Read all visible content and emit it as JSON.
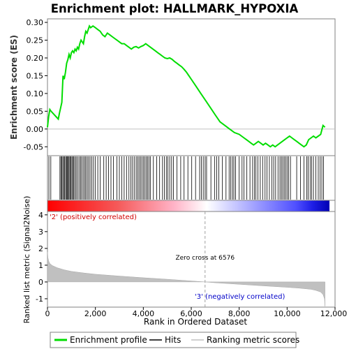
{
  "chart_data": {
    "type": "line",
    "title": "Enrichment plot: HALLMARK_HYPOXIA",
    "es_panel": {
      "ylabel": "Enrichment score (ES)",
      "ylim": [
        -0.075,
        0.31
      ],
      "yticks": [
        "0.30",
        "0.25",
        "0.20",
        "0.15",
        "0.10",
        "0.05",
        "0.00",
        "-0.05"
      ],
      "ytick_values": [
        0.3,
        0.25,
        0.2,
        0.15,
        0.1,
        0.05,
        0.0,
        -0.05
      ],
      "series": [
        {
          "name": "Enrichment profile",
          "color": "#00dd00",
          "x": [
            0,
            50,
            100,
            150,
            450,
            500,
            550,
            600,
            650,
            700,
            750,
            800,
            850,
            900,
            950,
            1000,
            1050,
            1100,
            1150,
            1200,
            1250,
            1300,
            1350,
            1400,
            1450,
            1500,
            1550,
            1600,
            1650,
            1700,
            1750,
            1800,
            1900,
            2000,
            2100,
            2200,
            2300,
            2400,
            2500,
            2600,
            2700,
            2800,
            2900,
            3000,
            3100,
            3200,
            3300,
            3400,
            3500,
            3600,
            3700,
            3800,
            3900,
            4000,
            4100,
            4200,
            4300,
            4400,
            4500,
            4600,
            4700,
            4800,
            4900,
            5000,
            5100,
            5200,
            5300,
            5400,
            5500,
            5600,
            5700,
            5800,
            5900,
            6000,
            6200,
            6400,
            6600,
            6800,
            7000,
            7200,
            7400,
            7600,
            7800,
            8000,
            8100,
            8200,
            8300,
            8400,
            8500,
            8600,
            8700,
            8800,
            8900,
            9000,
            9100,
            9200,
            9300,
            9400,
            9500,
            9600,
            9700,
            9800,
            9900,
            10000,
            10100,
            10200,
            10300,
            10400,
            10500,
            10600,
            10700,
            10800,
            10900,
            11000,
            11100,
            11200,
            11300,
            11400,
            11500,
            11580
          ],
          "y": [
            0.005,
            0.035,
            0.055,
            0.05,
            0.028,
            0.045,
            0.06,
            0.075,
            0.15,
            0.14,
            0.16,
            0.185,
            0.195,
            0.21,
            0.2,
            0.215,
            0.22,
            0.215,
            0.225,
            0.22,
            0.23,
            0.225,
            0.24,
            0.25,
            0.245,
            0.24,
            0.26,
            0.275,
            0.27,
            0.28,
            0.29,
            0.285,
            0.29,
            0.285,
            0.28,
            0.275,
            0.265,
            0.26,
            0.27,
            0.265,
            0.26,
            0.255,
            0.25,
            0.245,
            0.24,
            0.24,
            0.235,
            0.23,
            0.225,
            0.23,
            0.232,
            0.228,
            0.232,
            0.235,
            0.24,
            0.235,
            0.23,
            0.225,
            0.22,
            0.215,
            0.21,
            0.205,
            0.2,
            0.198,
            0.2,
            0.196,
            0.19,
            0.185,
            0.18,
            0.175,
            0.168,
            0.16,
            0.15,
            0.14,
            0.12,
            0.1,
            0.08,
            0.06,
            0.04,
            0.02,
            0.01,
            0.0,
            -0.01,
            -0.015,
            -0.02,
            -0.025,
            -0.03,
            -0.035,
            -0.04,
            -0.045,
            -0.04,
            -0.035,
            -0.04,
            -0.045,
            -0.04,
            -0.045,
            -0.05,
            -0.045,
            -0.05,
            -0.045,
            -0.04,
            -0.035,
            -0.03,
            -0.025,
            -0.02,
            -0.025,
            -0.03,
            -0.035,
            -0.04,
            -0.045,
            -0.05,
            -0.045,
            -0.03,
            -0.025,
            -0.02,
            -0.025,
            -0.02,
            -0.015,
            0.01,
            0.005
          ]
        }
      ]
    },
    "hits": {
      "name": "Hits",
      "positions": [
        60,
        140,
        520,
        560,
        600,
        640,
        680,
        720,
        760,
        800,
        830,
        870,
        900,
        940,
        980,
        1020,
        1060,
        1100,
        1150,
        1200,
        1260,
        1320,
        1380,
        1430,
        1490,
        1550,
        1600,
        1660,
        1720,
        1780,
        1850,
        1920,
        2000,
        2100,
        2200,
        2350,
        2450,
        2550,
        2650,
        2750,
        2900,
        3000,
        3100,
        3200,
        3300,
        3400,
        3480,
        3550,
        3620,
        3700,
        3760,
        3820,
        3880,
        3940,
        4000,
        4060,
        4120,
        4180,
        4240,
        4300,
        4420,
        4560,
        4680,
        4800,
        4880,
        4960,
        5020,
        5100,
        5180,
        5260,
        5400,
        5560,
        5700,
        5860,
        6020,
        6180,
        6350,
        6420,
        6500,
        6580,
        6640,
        6820,
        6980,
        7060,
        7150,
        7300,
        7450,
        7580,
        7650,
        7720,
        7780,
        7850,
        8000,
        8120,
        8200,
        8320,
        8450,
        8560,
        8640,
        8700,
        8780,
        8880,
        8980,
        9080,
        9160,
        9260,
        9360,
        9440,
        9520,
        9620,
        9700,
        9760,
        9820,
        9880,
        9940,
        10000,
        10060,
        10140,
        10400,
        10560,
        10700,
        10820,
        10880,
        10960,
        11020,
        11100,
        11200,
        11300,
        11380,
        11450,
        11520
      ]
    },
    "heatmap_bar": {
      "labels": [
        "'2' (positively correlated)",
        "'3' (negatively correlated)"
      ]
    },
    "metric_panel": {
      "ylabel": "Ranked list metric (Signal2Noise)",
      "ylim": [
        -1.5,
        4.2
      ],
      "yticks": [
        "4",
        "3",
        "2",
        "1",
        "0",
        "-1"
      ],
      "ytick_values": [
        4,
        3,
        2,
        1,
        0,
        -1
      ],
      "zero_cross": 6576,
      "zero_cross_label": "Zero cross at 6576",
      "curve": {
        "x": [
          0,
          20,
          50,
          100,
          200,
          400,
          700,
          1000,
          1500,
          2000,
          3000,
          4000,
          5000,
          6000,
          6576,
          7000,
          8000,
          9000,
          10000,
          10500,
          11000,
          11200,
          11400,
          11500,
          11560,
          11580
        ],
        "y": [
          1.8,
          1.45,
          1.25,
          1.1,
          0.98,
          0.85,
          0.72,
          0.63,
          0.54,
          0.46,
          0.35,
          0.25,
          0.16,
          0.06,
          0.0,
          -0.05,
          -0.14,
          -0.23,
          -0.32,
          -0.37,
          -0.44,
          -0.5,
          -0.6,
          -0.75,
          -1.0,
          -1.45
        ]
      }
    },
    "x_axis": {
      "xlabel": "Rank in Ordered Dataset",
      "xlim": [
        0,
        12000
      ],
      "xticks": [
        "0",
        "2,000",
        "4,000",
        "6,000",
        "8,000",
        "10,000",
        "12,000"
      ],
      "xtick_values": [
        0,
        2000,
        4000,
        6000,
        8000,
        10000,
        12000
      ],
      "n_genes": 11580
    },
    "legend": {
      "placement": "bottom",
      "entries": [
        {
          "name": "Enrichment profile",
          "color": "#00dd00"
        },
        {
          "name": "Hits",
          "color": "#000000"
        },
        {
          "name": "Ranking metric scores",
          "color": "#c0c0c0"
        }
      ]
    }
  }
}
